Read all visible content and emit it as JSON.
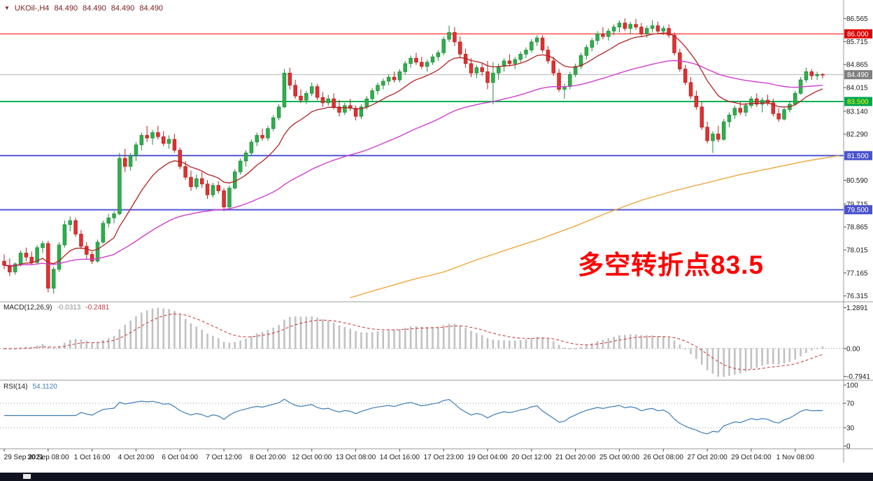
{
  "header": {
    "symbol": "UKOil-,H4",
    "open": "84.490",
    "high": "84.490",
    "low": "84.490",
    "close": "84.490"
  },
  "annotation": {
    "text": "多空转折点83.5",
    "color": "#ff0000"
  },
  "indicators": {
    "macd": {
      "label": "MACD(12,26,9)",
      "value_main": "-0.0313",
      "value_signal": "-0.2481",
      "axis": [
        "1.2891",
        "0.00",
        "-0.7941"
      ],
      "fast": 12,
      "slow": 26,
      "signal": 9
    },
    "rsi": {
      "label": "RSI(14)",
      "value": "54.1120",
      "axis": [
        "100",
        "70",
        "30",
        "0"
      ],
      "period": 14,
      "levels": [
        70,
        30
      ]
    }
  },
  "colors": {
    "bull": "#2fae4e",
    "bull_border": "#1d8a38",
    "bear": "#e03131",
    "bear_border": "#b61d1d",
    "ma_fast": "#b22222",
    "ma_mid": "#cf3fcf",
    "ma_slow": "#eda83e",
    "macd_hist": "#c6c6c6",
    "macd_signal": "#cf4040",
    "rsi": "#3f7cb8",
    "axis_text": "#1a1a1a",
    "separator": "#9a9a9a",
    "annotation": "#ff0000",
    "taskbar": "#10131f"
  },
  "chart_data": {
    "type": "candlestick",
    "title": "UKOil-,H4",
    "symbol": "UKOil-",
    "timeframe": "H4",
    "price_min": 76.1,
    "price_max": 87.25,
    "price_axis_ticks": [
      86.565,
      85.715,
      84.865,
      84.015,
      83.14,
      82.29,
      80.59,
      79.715,
      78.865,
      78.015,
      77.165,
      76.315
    ],
    "hlines": [
      {
        "price": 86.0,
        "color": "#ff0000",
        "width": 1
      },
      {
        "price": 83.5,
        "color": "#00b050",
        "width": 2
      },
      {
        "price": 81.5,
        "color": "#5056d6",
        "width": 2
      },
      {
        "price": 79.5,
        "color": "#5056d6",
        "width": 2
      }
    ],
    "price_line": {
      "price": 84.49,
      "color": "#b5b5b5"
    },
    "badges": [
      {
        "price": 86.0,
        "bg": "#e00000",
        "fg": "#ffffff"
      },
      {
        "price": 84.49,
        "bg": "#808080",
        "fg": "#ffffff"
      },
      {
        "price": 83.5,
        "bg": "#00a651",
        "fg": "#ffff00"
      },
      {
        "price": 81.5,
        "bg": "#4953cc",
        "fg": "#ffffff"
      },
      {
        "price": 79.5,
        "bg": "#4953cc",
        "fg": "#ffffff"
      }
    ],
    "x_labels": [
      "29 Sep 2021",
      "30 Sep 08:00",
      "1 Oct 16:00",
      "4 Oct 20:00",
      "6 Oct 04:00",
      "7 Oct 12:00",
      "8 Oct 20:00",
      "12 Oct 00:00",
      "13 Oct 08:00",
      "14 Oct 16:00",
      "17 Oct 23:00",
      "19 Oct 04:00",
      "20 Oct 12:00",
      "21 Oct 20:00",
      "25 Oct 00:00",
      "26 Oct 08:00",
      "27 Oct 20:00",
      "29 Oct 04:00",
      "1 Nov 08:00"
    ],
    "x_label_indices": [
      0,
      8,
      16,
      24,
      32,
      40,
      48,
      56,
      64,
      72,
      80,
      88,
      96,
      104,
      112,
      120,
      128,
      136,
      144
    ],
    "ma_fast_period": 13,
    "ma_mid_period": 55,
    "ma_slow_points": [
      [
        63,
        76.25
      ],
      [
        68,
        76.55
      ],
      [
        74,
        76.9
      ],
      [
        80,
        77.2
      ],
      [
        86,
        77.65
      ],
      [
        92,
        78.05
      ],
      [
        98,
        78.45
      ],
      [
        104,
        78.9
      ],
      [
        110,
        79.4
      ],
      [
        116,
        79.85
      ],
      [
        122,
        80.2
      ],
      [
        128,
        80.5
      ],
      [
        134,
        80.8
      ],
      [
        140,
        81.05
      ],
      [
        146,
        81.3
      ],
      [
        152,
        81.5
      ]
    ],
    "candles": [
      [
        77.6,
        77.85,
        77.3,
        77.45
      ],
      [
        77.45,
        77.7,
        77.05,
        77.2
      ],
      [
        77.2,
        77.55,
        77.1,
        77.5
      ],
      [
        77.5,
        78,
        77.4,
        77.9
      ],
      [
        77.9,
        78.1,
        77.6,
        77.75
      ],
      [
        77.75,
        77.95,
        77.45,
        77.55
      ],
      [
        77.55,
        78.2,
        77.5,
        78.1
      ],
      [
        78.1,
        78.35,
        77.9,
        78.25
      ],
      [
        78.25,
        78.35,
        76.45,
        76.6
      ],
      [
        76.6,
        77.4,
        76.4,
        77.3
      ],
      [
        77.3,
        78.3,
        77.2,
        78.2
      ],
      [
        78.2,
        79.1,
        78.1,
        78.95
      ],
      [
        78.95,
        79.25,
        78.7,
        79.1
      ],
      [
        79.1,
        79.2,
        78.5,
        78.6
      ],
      [
        78.6,
        78.75,
        78.05,
        78.15
      ],
      [
        78.15,
        78.3,
        77.7,
        77.85
      ],
      [
        77.85,
        77.95,
        77.5,
        77.6
      ],
      [
        77.6,
        78.4,
        77.55,
        78.3
      ],
      [
        78.3,
        79.1,
        78.25,
        79
      ],
      [
        79,
        79.35,
        78.85,
        79.2
      ],
      [
        79.2,
        79.45,
        79,
        79.35
      ],
      [
        79.35,
        81.6,
        79.3,
        81.4
      ],
      [
        81.4,
        81.75,
        80.9,
        81.1
      ],
      [
        81.1,
        81.6,
        80.95,
        81.5
      ],
      [
        81.5,
        82,
        81.3,
        81.9
      ],
      [
        81.9,
        82.35,
        81.7,
        82.25
      ],
      [
        82.25,
        82.6,
        82,
        82.15
      ],
      [
        82.15,
        82.45,
        81.9,
        82.35
      ],
      [
        82.35,
        82.6,
        82.1,
        82.2
      ],
      [
        82.2,
        82.4,
        81.85,
        81.95
      ],
      [
        81.95,
        82.25,
        81.75,
        82.1
      ],
      [
        82.1,
        82.3,
        81.6,
        81.7
      ],
      [
        81.7,
        81.8,
        81,
        81.1
      ],
      [
        81.1,
        81.3,
        80.6,
        80.7
      ],
      [
        80.7,
        80.95,
        80.2,
        80.35
      ],
      [
        80.35,
        80.8,
        80.25,
        80.65
      ],
      [
        80.65,
        80.9,
        80.3,
        80.45
      ],
      [
        80.45,
        80.6,
        79.9,
        80.05
      ],
      [
        80.05,
        80.5,
        79.95,
        80.4
      ],
      [
        80.4,
        80.55,
        80.1,
        80.2
      ],
      [
        80.2,
        80.3,
        79.45,
        79.6
      ],
      [
        79.6,
        80.4,
        79.5,
        80.3
      ],
      [
        80.3,
        81,
        80.25,
        80.9
      ],
      [
        80.9,
        81.4,
        80.8,
        81.3
      ],
      [
        81.3,
        81.7,
        81.1,
        81.6
      ],
      [
        81.6,
        82.1,
        81.5,
        82
      ],
      [
        82,
        82.35,
        81.85,
        82.25
      ],
      [
        82.25,
        82.5,
        82.05,
        82.15
      ],
      [
        82.15,
        82.6,
        82.05,
        82.5
      ],
      [
        82.5,
        83,
        82.4,
        82.9
      ],
      [
        82.9,
        83.4,
        82.8,
        83.3
      ],
      [
        83.3,
        84.7,
        83.25,
        84.55
      ],
      [
        84.55,
        84.75,
        83.95,
        84.1
      ],
      [
        84.1,
        84.3,
        83.6,
        83.7
      ],
      [
        83.7,
        83.95,
        83.45,
        83.55
      ],
      [
        83.55,
        83.9,
        83.4,
        83.8
      ],
      [
        83.8,
        84.2,
        83.7,
        84.05
      ],
      [
        84.05,
        84.15,
        83.55,
        83.65
      ],
      [
        83.65,
        83.85,
        83.3,
        83.45
      ],
      [
        83.45,
        83.75,
        83.35,
        83.6
      ],
      [
        83.6,
        83.8,
        83.2,
        83.3
      ],
      [
        83.3,
        83.55,
        82.95,
        83.1
      ],
      [
        83.1,
        83.45,
        83,
        83.35
      ],
      [
        83.35,
        83.6,
        83.15,
        83.25
      ],
      [
        83.25,
        83.35,
        82.8,
        82.95
      ],
      [
        82.95,
        83.4,
        82.85,
        83.3
      ],
      [
        83.3,
        83.7,
        83.2,
        83.6
      ],
      [
        83.6,
        84,
        83.5,
        83.9
      ],
      [
        83.9,
        84.2,
        83.75,
        84.1
      ],
      [
        84.1,
        84.35,
        83.95,
        84.25
      ],
      [
        84.25,
        84.5,
        84.1,
        84.4
      ],
      [
        84.4,
        84.6,
        84.2,
        84.3
      ],
      [
        84.3,
        84.7,
        84.2,
        84.6
      ],
      [
        84.6,
        85,
        84.5,
        84.9
      ],
      [
        84.9,
        85.2,
        84.75,
        85.1
      ],
      [
        85.1,
        85.3,
        84.85,
        84.95
      ],
      [
        84.95,
        85.15,
        84.7,
        84.8
      ],
      [
        84.8,
        85.05,
        84.6,
        84.95
      ],
      [
        84.95,
        85.25,
        84.85,
        85.15
      ],
      [
        85.15,
        85.4,
        85,
        85.3
      ],
      [
        85.3,
        85.9,
        85.2,
        85.8
      ],
      [
        85.8,
        86.3,
        85.7,
        86.05
      ],
      [
        86.05,
        86.25,
        85.55,
        85.7
      ],
      [
        85.7,
        85.9,
        85.1,
        85.25
      ],
      [
        85.25,
        85.45,
        84.75,
        84.9
      ],
      [
        84.9,
        85.1,
        84.4,
        84.55
      ],
      [
        84.55,
        84.85,
        84.35,
        84.75
      ],
      [
        84.75,
        84.9,
        84.45,
        84.6
      ],
      [
        84.6,
        85,
        83.95,
        84.2
      ],
      [
        84.2,
        84.95,
        83.4,
        84.55
      ],
      [
        84.55,
        84.9,
        84.3,
        84.8
      ],
      [
        84.8,
        85.1,
        84.6,
        85
      ],
      [
        85,
        85.25,
        84.8,
        84.9
      ],
      [
        84.9,
        85.15,
        84.7,
        85.05
      ],
      [
        85.05,
        85.35,
        84.95,
        85.25
      ],
      [
        85.25,
        85.5,
        85.1,
        85.4
      ],
      [
        85.4,
        85.8,
        85.3,
        85.7
      ],
      [
        85.7,
        85.95,
        85.55,
        85.85
      ],
      [
        85.85,
        85.95,
        85.3,
        85.4
      ],
      [
        85.4,
        85.55,
        84.9,
        85
      ],
      [
        85,
        85.15,
        84.45,
        84.55
      ],
      [
        84.55,
        84.7,
        83.85,
        83.95
      ],
      [
        83.95,
        84.15,
        83.6,
        84.05
      ],
      [
        84.05,
        84.6,
        83.95,
        84.5
      ],
      [
        84.5,
        84.9,
        84.4,
        84.8
      ],
      [
        84.8,
        85.3,
        84.7,
        85.2
      ],
      [
        85.2,
        85.6,
        85.05,
        85.5
      ],
      [
        85.5,
        85.85,
        85.35,
        85.75
      ],
      [
        85.75,
        86.1,
        85.6,
        86
      ],
      [
        86,
        86.25,
        85.8,
        85.9
      ],
      [
        85.9,
        86.2,
        85.75,
        86.1
      ],
      [
        86.1,
        86.35,
        85.95,
        86.25
      ],
      [
        86.25,
        86.5,
        86.05,
        86.4
      ],
      [
        86.4,
        86.57,
        86.1,
        86.2
      ],
      [
        86.2,
        86.45,
        86,
        86.35
      ],
      [
        86.35,
        86.55,
        86.15,
        86.25
      ],
      [
        86.25,
        86.4,
        85.9,
        86
      ],
      [
        86,
        86.3,
        85.85,
        86.2
      ],
      [
        86.2,
        86.5,
        86.05,
        86.3
      ],
      [
        86.3,
        86.45,
        86,
        86.1
      ],
      [
        86.1,
        86.3,
        85.95,
        86.2
      ],
      [
        86.2,
        86.35,
        85.85,
        85.95
      ],
      [
        85.95,
        86.05,
        85.2,
        85.3
      ],
      [
        85.3,
        85.45,
        84.6,
        84.7
      ],
      [
        84.7,
        84.85,
        84.1,
        84.2
      ],
      [
        84.2,
        84.4,
        83.6,
        83.7
      ],
      [
        83.7,
        83.9,
        83.2,
        83.3
      ],
      [
        83.3,
        83.5,
        82.45,
        82.55
      ],
      [
        82.55,
        82.75,
        81.95,
        82.05
      ],
      [
        82.05,
        82.4,
        81.6,
        82.3
      ],
      [
        82.3,
        82.6,
        82,
        82.1
      ],
      [
        82.1,
        82.85,
        82.05,
        82.75
      ],
      [
        82.75,
        83.1,
        82.55,
        83
      ],
      [
        83,
        83.35,
        82.85,
        83.25
      ],
      [
        83.25,
        83.5,
        83,
        83.1
      ],
      [
        83.1,
        83.45,
        82.95,
        83.35
      ],
      [
        83.35,
        83.7,
        83.25,
        83.6
      ],
      [
        83.6,
        83.8,
        83.3,
        83.4
      ],
      [
        83.4,
        83.65,
        83.1,
        83.55
      ],
      [
        83.55,
        83.75,
        83.35,
        83.45
      ],
      [
        83.45,
        83.6,
        82.95,
        83.05
      ],
      [
        83.05,
        83.25,
        82.75,
        82.85
      ],
      [
        82.85,
        83.3,
        82.8,
        83.2
      ],
      [
        83.2,
        83.5,
        83.1,
        83.4
      ],
      [
        83.4,
        83.9,
        83.35,
        83.8
      ],
      [
        83.8,
        84.4,
        83.75,
        84.3
      ],
      [
        84.3,
        84.75,
        84.2,
        84.6
      ],
      [
        84.6,
        84.7,
        84.3,
        84.45
      ],
      [
        84.45,
        84.6,
        84.3,
        84.5
      ],
      [
        84.5,
        84.55,
        84.35,
        84.49
      ]
    ]
  }
}
